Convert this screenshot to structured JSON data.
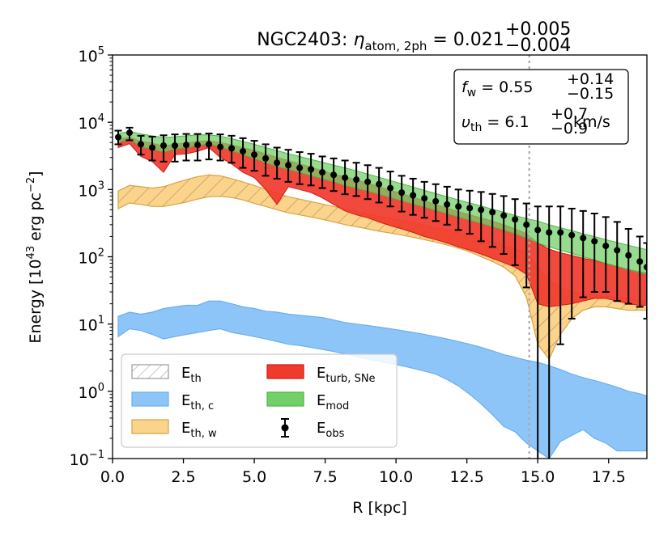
{
  "chart_data": {
    "type": "area",
    "title": "NGC2403: η_atom, 2ph = 0.021 +0.005 −0.004",
    "title_parts": {
      "prefix": "NGC2403: ",
      "symbol": "η",
      "sub": "atom, 2ph",
      "eq": " = 0.021",
      "sup_plus": "+0.005",
      "sub_minus": "−0.004"
    },
    "xlabel": "R [kpc]",
    "ylabel_parts": {
      "main": "Energy [10",
      "exp": "43",
      "unit": " erg pc",
      "exp2": "−2",
      "close": "]"
    },
    "xlim": [
      0,
      18.85
    ],
    "ylim_log10": [
      -1,
      5
    ],
    "yscale": "log",
    "x_ticks": [
      {
        "value": 0,
        "label": "0.0"
      },
      {
        "value": 2.5,
        "label": "2.5"
      },
      {
        "value": 5,
        "label": "5.0"
      },
      {
        "value": 7.5,
        "label": "7.5"
      },
      {
        "value": 10,
        "label": "10.0"
      },
      {
        "value": 12.5,
        "label": "12.5"
      },
      {
        "value": 15,
        "label": "15.0"
      },
      {
        "value": 17.5,
        "label": "17.5"
      }
    ],
    "y_ticks": [
      {
        "exp": -1,
        "base": "10",
        "sup": "−1"
      },
      {
        "exp": 0,
        "base": "10",
        "sup": "0"
      },
      {
        "exp": 1,
        "base": "10",
        "sup": "1"
      },
      {
        "exp": 2,
        "base": "10",
        "sup": "2"
      },
      {
        "exp": 3,
        "base": "10",
        "sup": "3"
      },
      {
        "exp": 4,
        "base": "10",
        "sup": "4"
      },
      {
        "exp": 5,
        "base": "10",
        "sup": "5"
      }
    ],
    "vline_x": 14.7,
    "annotation": {
      "fw_sym": "f",
      "fw_sub": "w",
      "fw_val": " = 0.55",
      "fw_plus": "+0.14",
      "fw_minus": "−0.15",
      "vth_sym": "υ",
      "vth_sub": "th",
      "vth_val": " = 6.1",
      "vth_plus": "+0.7",
      "vth_minus": "−0.9",
      "vth_unit": " km/s"
    },
    "legend": [
      {
        "key": "th",
        "base": "E",
        "sub": "th"
      },
      {
        "key": "th_c",
        "base": "E",
        "sub": "th, c"
      },
      {
        "key": "th_w",
        "base": "E",
        "sub": "th, w"
      },
      {
        "key": "turb",
        "base": "E",
        "sub": "turb, SNe"
      },
      {
        "key": "mod",
        "base": "E",
        "sub": "mod"
      },
      {
        "key": "obs",
        "base": "E",
        "sub": "obs"
      }
    ],
    "colors": {
      "th_c_fill": "#8ec5f8",
      "th_c_edge": "#6aaef0",
      "th_w_fill": "#fbd38a",
      "th_w_edge": "#d9a441",
      "turb_fill": "#f03a2c",
      "turb_edge": "#d01a14",
      "mod_fill": "#73cf68",
      "mod_edge": "#4fb448",
      "hatch": "#9a9a9a",
      "obs": "#000000",
      "vline": "#aaaaaa"
    },
    "series": {
      "th_c": {
        "name": "E_th,c",
        "x": [
          0.2,
          0.6,
          1.0,
          1.4,
          1.8,
          2.2,
          2.6,
          3.0,
          3.4,
          3.8,
          4.2,
          4.6,
          5.0,
          5.4,
          5.8,
          6.2,
          6.6,
          7.0,
          7.4,
          7.8,
          8.2,
          8.6,
          9.0,
          9.4,
          9.8,
          10.2,
          10.6,
          11.0,
          11.4,
          11.8,
          12.2,
          12.6,
          13.0,
          13.4,
          13.8,
          14.2,
          14.6,
          15.0,
          15.4,
          15.8,
          16.2,
          16.6,
          17.0,
          17.4,
          17.8,
          18.2,
          18.6,
          18.85
        ],
        "lower": [
          6.5,
          8.5,
          8,
          7,
          6,
          6.5,
          7,
          7.5,
          8,
          8.5,
          7.5,
          7,
          6.5,
          6,
          5.5,
          5,
          4.8,
          4.5,
          4.2,
          3.9,
          3.6,
          3.3,
          3,
          2.8,
          2.6,
          2.4,
          2.2,
          2.0,
          1.8,
          1.5,
          1.2,
          0.9,
          0.65,
          0.45,
          0.3,
          0.25,
          0.17,
          0.13,
          0.1,
          0.18,
          0.22,
          0.27,
          0.2,
          0.17,
          0.13,
          0.13,
          0.13,
          0.13
        ],
        "upper": [
          13,
          15,
          14,
          15,
          17,
          18,
          19,
          19,
          22,
          22,
          20,
          18,
          17,
          15.5,
          15,
          14,
          13.5,
          13,
          12.5,
          11.5,
          10.5,
          10,
          9.5,
          9,
          8.5,
          8,
          7.5,
          7,
          6.5,
          6,
          5.5,
          5,
          4.5,
          4,
          3.5,
          3.2,
          2.9,
          2.7,
          2.4,
          2.1,
          1.8,
          1.6,
          1.45,
          1.3,
          1.15,
          1.0,
          0.92,
          0.85
        ]
      },
      "th_w": {
        "name": "E_th,w",
        "x": [
          0.2,
          0.6,
          1.0,
          1.4,
          1.8,
          2.2,
          2.6,
          3.0,
          3.4,
          3.8,
          4.2,
          4.6,
          5.0,
          5.4,
          5.8,
          6.2,
          6.6,
          7.0,
          7.4,
          7.8,
          8.2,
          8.6,
          9.0,
          9.4,
          9.8,
          10.2,
          10.6,
          11.0,
          11.4,
          11.8,
          12.2,
          12.6,
          13.0,
          13.4,
          13.8,
          14.2,
          14.6,
          15.0,
          15.4,
          15.8,
          16.2,
          16.6,
          17.0,
          17.4,
          17.8,
          18.2,
          18.6,
          18.85
        ],
        "lower": [
          520,
          630,
          600,
          560,
          560,
          600,
          650,
          720,
          780,
          790,
          760,
          700,
          620,
          560,
          500,
          450,
          420,
          390,
          360,
          330,
          300,
          280,
          260,
          240,
          225,
          210,
          195,
          180,
          165,
          150,
          135,
          118,
          100,
          85,
          70,
          52,
          25,
          5,
          3,
          7,
          12,
          16,
          18,
          18,
          17,
          16,
          16,
          16
        ],
        "upper": [
          950,
          1150,
          1100,
          1050,
          1100,
          1250,
          1400,
          1550,
          1650,
          1600,
          1450,
          1300,
          1150,
          1000,
          880,
          780,
          720,
          660,
          610,
          560,
          510,
          470,
          430,
          400,
          370,
          345,
          320,
          290,
          265,
          245,
          225,
          205,
          185,
          165,
          148,
          130,
          115,
          70,
          45,
          35,
          30,
          28,
          27,
          26,
          25,
          24,
          22,
          22
        ]
      },
      "turb": {
        "name": "E_turb,SNe",
        "x": [
          0.2,
          0.6,
          1.0,
          1.4,
          1.8,
          2.2,
          2.6,
          3.0,
          3.4,
          3.8,
          4.2,
          4.6,
          5.0,
          5.4,
          5.8,
          6.2,
          6.6,
          7.0,
          7.4,
          7.8,
          8.2,
          8.6,
          9.0,
          9.4,
          9.8,
          10.2,
          10.6,
          11.0,
          11.4,
          11.8,
          12.2,
          12.6,
          13.0,
          13.4,
          13.8,
          14.2,
          14.6,
          15.0,
          15.4,
          15.8,
          16.2,
          16.6,
          17.0,
          17.4,
          17.8,
          18.2,
          18.6,
          18.85
        ],
        "lower": [
          4200,
          4800,
          3100,
          2600,
          1800,
          3300,
          3400,
          3700,
          4200,
          3000,
          2400,
          1800,
          1500,
          1000,
          600,
          1100,
          1000,
          900,
          750,
          600,
          480,
          420,
          380,
          330,
          290,
          260,
          230,
          200,
          180,
          160,
          140,
          125,
          110,
          95,
          82,
          70,
          55,
          20,
          18,
          19,
          20,
          22,
          24,
          24,
          22,
          20,
          19,
          19
        ],
        "upper": [
          5600,
          6000,
          5200,
          4900,
          4400,
          4700,
          4900,
          5200,
          5300,
          5000,
          4600,
          4200,
          3800,
          3400,
          3000,
          2700,
          2400,
          2150,
          1900,
          1700,
          1550,
          1400,
          1250,
          1100,
          980,
          870,
          770,
          680,
          600,
          530,
          470,
          420,
          380,
          340,
          300,
          260,
          220,
          160,
          130,
          115,
          105,
          95,
          88,
          80,
          72,
          65,
          60,
          58
        ]
      },
      "mod": {
        "name": "E_mod",
        "x": [
          0.2,
          0.6,
          1.0,
          1.4,
          1.8,
          2.2,
          2.6,
          3.0,
          3.4,
          3.8,
          4.2,
          4.6,
          5.0,
          5.4,
          5.8,
          6.2,
          6.6,
          7.0,
          7.4,
          7.8,
          8.2,
          8.6,
          9.0,
          9.4,
          9.8,
          10.2,
          10.6,
          11.0,
          11.4,
          11.8,
          12.2,
          12.6,
          13.0,
          13.4,
          13.8,
          14.2,
          14.6,
          15.0,
          15.4,
          15.8,
          16.2,
          16.6,
          17.0,
          17.4,
          17.8,
          18.2,
          18.6,
          18.85
        ],
        "lower": [
          5000,
          5700,
          4300,
          4000,
          3600,
          4000,
          4200,
          4500,
          4800,
          4300,
          3800,
          3300,
          2900,
          2500,
          2200,
          2000,
          1800,
          1600,
          1450,
          1300,
          1150,
          1050,
          950,
          850,
          760,
          680,
          610,
          550,
          490,
          440,
          390,
          350,
          315,
          280,
          250,
          220,
          190,
          160,
          140,
          125,
          112,
          100,
          90,
          80,
          72,
          64,
          58,
          55
        ],
        "upper": [
          6800,
          7300,
          6700,
          6300,
          5900,
          6100,
          6300,
          6500,
          6500,
          6200,
          5700,
          5200,
          4700,
          4200,
          3800,
          3400,
          3100,
          2800,
          2550,
          2300,
          2100,
          1900,
          1700,
          1520,
          1360,
          1220,
          1090,
          970,
          870,
          780,
          700,
          630,
          570,
          510,
          460,
          410,
          370,
          340,
          300,
          270,
          245,
          220,
          200,
          180,
          163,
          148,
          135,
          128
        ]
      },
      "obs": {
        "name": "E_obs",
        "x": [
          0.2,
          0.6,
          1.0,
          1.4,
          1.8,
          2.2,
          2.6,
          3.0,
          3.4,
          3.8,
          4.2,
          4.6,
          5.0,
          5.4,
          5.8,
          6.2,
          6.6,
          7.0,
          7.4,
          7.8,
          8.2,
          8.6,
          9.0,
          9.4,
          9.8,
          10.2,
          10.6,
          11.0,
          11.4,
          11.8,
          12.2,
          12.6,
          13.0,
          13.4,
          13.8,
          14.2,
          14.6,
          15.0,
          15.4,
          15.8,
          16.2,
          16.6,
          17.0,
          17.4,
          17.8,
          18.2,
          18.6,
          18.85
        ],
        "y": [
          6000,
          7000,
          4700,
          4200,
          4500,
          4500,
          4600,
          4600,
          4700,
          4300,
          4100,
          3700,
          3300,
          2900,
          2500,
          2300,
          2100,
          2000,
          1800,
          1650,
          1500,
          1400,
          1300,
          1200,
          1050,
          900,
          820,
          740,
          670,
          600,
          560,
          530,
          500,
          460,
          410,
          360,
          300,
          250,
          230,
          230,
          210,
          190,
          170,
          145,
          125,
          105,
          85,
          70
        ],
        "yerr_low": [
          4700,
          5400,
          3300,
          2700,
          2600,
          2600,
          2700,
          2700,
          2800,
          2700,
          2500,
          2100,
          1900,
          1600,
          1450,
          1300,
          1200,
          1150,
          1050,
          950,
          850,
          800,
          720,
          640,
          560,
          470,
          420,
          380,
          340,
          300,
          250,
          220,
          170,
          140,
          110,
          75,
          35,
          0.01,
          0.01,
          5,
          12,
          25,
          30,
          30,
          22,
          20,
          18,
          12
        ],
        "yerr_high": [
          7500,
          8300,
          6300,
          6100,
          6400,
          6600,
          6700,
          6700,
          6800,
          6600,
          6300,
          5800,
          5300,
          4700,
          4200,
          3900,
          3600,
          3400,
          3100,
          2900,
          2700,
          2500,
          2300,
          2100,
          1850,
          1600,
          1450,
          1300,
          1200,
          1100,
          1000,
          960,
          920,
          860,
          800,
          720,
          620,
          560,
          560,
          560,
          520,
          480,
          440,
          390,
          330,
          260,
          200,
          160
        ]
      }
    }
  }
}
